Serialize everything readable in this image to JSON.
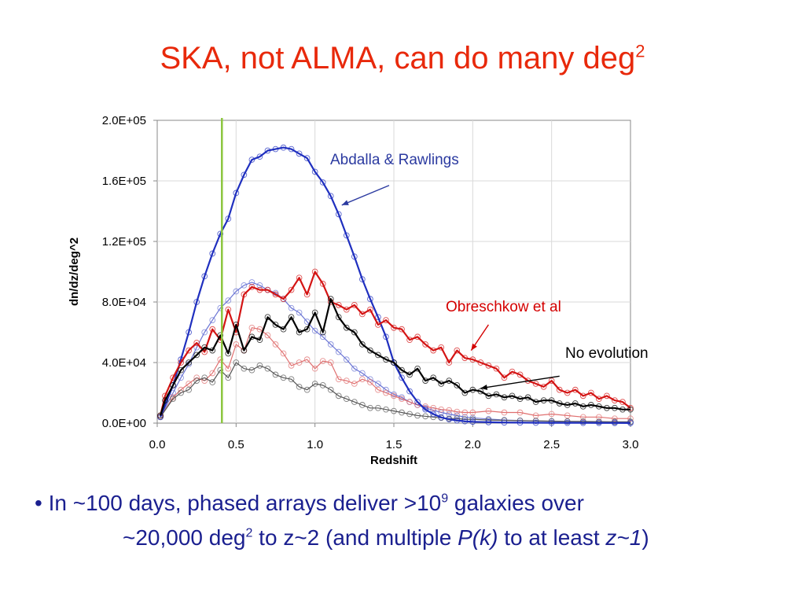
{
  "slide": {
    "title_main": "SKA, not ALMA, can do many deg",
    "title_sup": "2",
    "bullet": {
      "marker": "•",
      "line1_a": "In ~100 days, phased arrays deliver >10",
      "line1_sup": "9",
      "line1_b": " galaxies over",
      "line2_a": "~20,000 deg",
      "line2_sup": "2",
      "line2_b": " to z~2 (and multiple ",
      "line2_pk": "P(k)",
      "line2_c": " to at least ",
      "line2_z": "z~1",
      "line2_d": ")"
    }
  },
  "chart_data": {
    "type": "line",
    "xlabel": "Redshift",
    "ylabel": "dn/dz/deg^2",
    "xlim": [
      0,
      3
    ],
    "ylim": [
      0,
      200000
    ],
    "xticks": [
      "0.0",
      "0.5",
      "1.0",
      "1.5",
      "2.0",
      "2.5",
      "3.0"
    ],
    "xtick_values": [
      0,
      0.5,
      1.0,
      1.5,
      2.0,
      2.5,
      3.0
    ],
    "yticks": [
      "0.0E+00",
      "4.0E+04",
      "8.0E+04",
      "1.2E+05",
      "1.6E+05",
      "2.0E+05"
    ],
    "ytick_values": [
      0,
      40000,
      80000,
      120000,
      160000,
      200000
    ],
    "grid": true,
    "vline": {
      "x": 0.41,
      "color": "#8cc63f"
    },
    "annotations": [
      {
        "text": "Abdalla & Rawlings",
        "color": "#2b3aa0",
        "x": 1.17,
        "y": 144000
      },
      {
        "text": "Obreschkow et al",
        "color": "#d40000",
        "x": 1.99,
        "y": 48000
      },
      {
        "text": "No evolution",
        "color": "#000000",
        "x": 2.05,
        "y": 23000
      }
    ],
    "series": [
      {
        "color": "#1f2fbf",
        "width": 2.2,
        "marker": true,
        "x": [
          0.02,
          0.1,
          0.15,
          0.2,
          0.25,
          0.3,
          0.35,
          0.4,
          0.45,
          0.5,
          0.55,
          0.6,
          0.65,
          0.7,
          0.75,
          0.8,
          0.85,
          0.9,
          0.95,
          1.0,
          1.05,
          1.1,
          1.15,
          1.2,
          1.25,
          1.3,
          1.35,
          1.4,
          1.45,
          1.5,
          1.55,
          1.6,
          1.65,
          1.7,
          1.75,
          1.8,
          1.85,
          1.9,
          1.95,
          2.0,
          2.1,
          2.2,
          2.3,
          2.4,
          2.5,
          2.6,
          2.7,
          2.8,
          2.9,
          3.0
        ],
        "y": [
          4000,
          25000,
          42000,
          60000,
          80000,
          97000,
          112000,
          125000,
          135000,
          152000,
          164000,
          174000,
          176000,
          180000,
          181000,
          182000,
          181000,
          178000,
          175000,
          166000,
          159000,
          150000,
          138000,
          124000,
          110000,
          95000,
          82000,
          70000,
          57000,
          40000,
          30000,
          21000,
          14000,
          9000,
          6000,
          3800,
          2500,
          1800,
          1200,
          900,
          600,
          400,
          300,
          250,
          200,
          160,
          130,
          100,
          80,
          60
        ]
      },
      {
        "color": "#d41414",
        "width": 2.2,
        "marker": true,
        "x": [
          0.02,
          0.05,
          0.1,
          0.15,
          0.2,
          0.25,
          0.3,
          0.35,
          0.4,
          0.45,
          0.5,
          0.55,
          0.6,
          0.65,
          0.7,
          0.75,
          0.8,
          0.85,
          0.9,
          0.95,
          1.0,
          1.05,
          1.1,
          1.15,
          1.2,
          1.25,
          1.3,
          1.35,
          1.4,
          1.45,
          1.5,
          1.55,
          1.6,
          1.65,
          1.7,
          1.75,
          1.8,
          1.85,
          1.9,
          1.95,
          2.0,
          2.05,
          2.1,
          2.15,
          2.2,
          2.25,
          2.3,
          2.35,
          2.4,
          2.45,
          2.5,
          2.55,
          2.6,
          2.65,
          2.7,
          2.75,
          2.8,
          2.85,
          2.9,
          2.95,
          3.0
        ],
        "y": [
          5000,
          18000,
          30000,
          40000,
          48000,
          53000,
          47000,
          62000,
          55000,
          75000,
          60000,
          85000,
          90000,
          88000,
          88000,
          85000,
          82000,
          88000,
          96000,
          85000,
          100000,
          92000,
          80000,
          78000,
          75000,
          78000,
          72000,
          75000,
          65000,
          68000,
          63000,
          62000,
          55000,
          57000,
          52000,
          48000,
          50000,
          40000,
          48000,
          43000,
          42000,
          40000,
          38000,
          36000,
          30000,
          34000,
          32000,
          28000,
          26000,
          24000,
          28000,
          22000,
          20000,
          22000,
          18000,
          20000,
          16000,
          18000,
          15000,
          14000,
          10000
        ]
      },
      {
        "color": "#000000",
        "width": 2.2,
        "marker": true,
        "x": [
          0.02,
          0.05,
          0.1,
          0.15,
          0.2,
          0.25,
          0.3,
          0.35,
          0.4,
          0.45,
          0.5,
          0.55,
          0.6,
          0.65,
          0.7,
          0.75,
          0.8,
          0.85,
          0.9,
          0.95,
          1.0,
          1.05,
          1.1,
          1.15,
          1.2,
          1.25,
          1.3,
          1.35,
          1.4,
          1.45,
          1.5,
          1.55,
          1.6,
          1.65,
          1.7,
          1.75,
          1.8,
          1.85,
          1.9,
          1.95,
          2.0,
          2.05,
          2.1,
          2.15,
          2.2,
          2.25,
          2.3,
          2.35,
          2.4,
          2.45,
          2.5,
          2.55,
          2.6,
          2.65,
          2.7,
          2.75,
          2.8,
          2.85,
          2.9,
          2.95,
          3.0
        ],
        "y": [
          5000,
          15000,
          25000,
          35000,
          40000,
          45000,
          50000,
          48000,
          58000,
          46000,
          65000,
          48000,
          57000,
          55000,
          70000,
          65000,
          62000,
          70000,
          60000,
          62000,
          73000,
          60000,
          82000,
          70000,
          63000,
          60000,
          52000,
          48000,
          45000,
          42000,
          40000,
          35000,
          32000,
          36000,
          28000,
          30000,
          26000,
          28000,
          25000,
          20000,
          22000,
          21000,
          18000,
          19000,
          17000,
          18000,
          16000,
          17000,
          14000,
          15000,
          15000,
          13000,
          12000,
          13000,
          11000,
          12000,
          11000,
          10000,
          10000,
          9000,
          9000
        ]
      },
      {
        "color": "#6a74d4",
        "width": 1.2,
        "marker": true,
        "x": [
          0.02,
          0.1,
          0.15,
          0.2,
          0.25,
          0.3,
          0.35,
          0.4,
          0.45,
          0.5,
          0.55,
          0.6,
          0.65,
          0.7,
          0.75,
          0.8,
          0.85,
          0.9,
          0.95,
          1.0,
          1.05,
          1.1,
          1.15,
          1.2,
          1.25,
          1.3,
          1.35,
          1.4,
          1.45,
          1.5,
          1.55,
          1.6,
          1.65,
          1.7,
          1.75,
          1.8,
          1.85,
          1.9,
          1.95,
          2.0,
          2.1,
          2.2,
          2.3,
          2.4,
          2.5,
          2.6,
          2.7,
          2.8,
          2.9,
          3.0
        ],
        "y": [
          4000,
          20000,
          30000,
          39000,
          50000,
          60000,
          68000,
          76000,
          81000,
          87000,
          91000,
          93000,
          91000,
          88000,
          86000,
          82000,
          76000,
          73000,
          67000,
          61000,
          57000,
          52000,
          47000,
          42000,
          36000,
          33000,
          29000,
          26000,
          22000,
          19000,
          17000,
          14000,
          12000,
          10000,
          8500,
          7000,
          6000,
          5000,
          4000,
          3500,
          2700,
          2000,
          1700,
          1400,
          1200,
          1000,
          900,
          800,
          700,
          600
        ]
      },
      {
        "color": "#e07070",
        "width": 1.2,
        "marker": true,
        "x": [
          0.02,
          0.1,
          0.15,
          0.2,
          0.25,
          0.3,
          0.35,
          0.4,
          0.45,
          0.5,
          0.55,
          0.6,
          0.65,
          0.7,
          0.75,
          0.8,
          0.85,
          0.9,
          0.95,
          1.0,
          1.05,
          1.1,
          1.15,
          1.2,
          1.25,
          1.3,
          1.35,
          1.4,
          1.45,
          1.5,
          1.55,
          1.6,
          1.65,
          1.7,
          1.75,
          1.8,
          1.85,
          1.9,
          1.95,
          2.0,
          2.1,
          2.2,
          2.3,
          2.4,
          2.5,
          2.6,
          2.7,
          2.8,
          2.9,
          3.0
        ],
        "y": [
          4000,
          17000,
          22000,
          26000,
          30000,
          28000,
          33000,
          42000,
          36000,
          52000,
          48000,
          63000,
          62000,
          58000,
          52000,
          46000,
          38000,
          40000,
          42000,
          36000,
          41000,
          40000,
          29000,
          28000,
          26000,
          29000,
          27000,
          22000,
          20000,
          18000,
          16000,
          14000,
          12000,
          11000,
          10000,
          9000,
          8500,
          7500,
          7000,
          7000,
          8000,
          7000,
          7000,
          5000,
          6000,
          5000,
          4000,
          4000,
          3000,
          3000
        ]
      },
      {
        "color": "#555555",
        "width": 1.2,
        "marker": true,
        "x": [
          0.02,
          0.1,
          0.15,
          0.2,
          0.25,
          0.3,
          0.35,
          0.4,
          0.45,
          0.5,
          0.55,
          0.6,
          0.65,
          0.7,
          0.75,
          0.8,
          0.85,
          0.9,
          0.95,
          1.0,
          1.05,
          1.1,
          1.15,
          1.2,
          1.25,
          1.3,
          1.35,
          1.4,
          1.45,
          1.5,
          1.55,
          1.6,
          1.65,
          1.7,
          1.75,
          1.8,
          1.85,
          1.9,
          1.95,
          2.0,
          2.1,
          2.2,
          2.3,
          2.4,
          2.5,
          2.6,
          2.7,
          2.8,
          2.9,
          3.0
        ],
        "y": [
          4000,
          16000,
          20000,
          22000,
          28000,
          30000,
          27000,
          35000,
          30000,
          40000,
          36000,
          35000,
          38000,
          36000,
          32000,
          30000,
          29000,
          24000,
          22000,
          26000,
          25000,
          22000,
          18000,
          16000,
          14000,
          12000,
          10000,
          10000,
          9000,
          8000,
          7000,
          6000,
          5000,
          4500,
          4000,
          3500,
          3000,
          3000,
          2500,
          2500,
          2000,
          1800,
          1600,
          1500,
          1300,
          1200,
          1100,
          1000,
          900,
          900
        ]
      }
    ]
  }
}
